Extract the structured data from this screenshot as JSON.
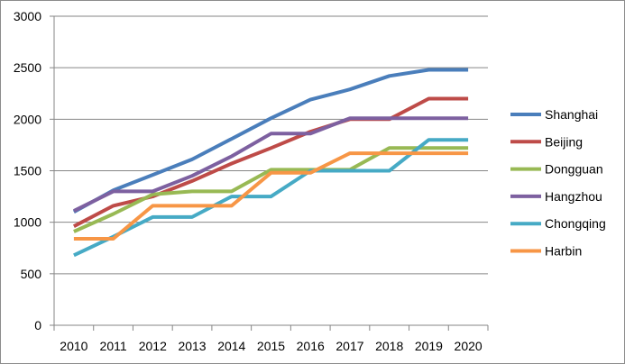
{
  "chart_data": {
    "type": "line",
    "title": "",
    "xlabel": "",
    "ylabel": "",
    "ylim": [
      0,
      3000
    ],
    "yticks": [
      0,
      500,
      1000,
      1500,
      2000,
      2500,
      3000
    ],
    "grid": true,
    "legend_position": "right",
    "categories": [
      "2010",
      "2011",
      "2012",
      "2013",
      "2014",
      "2015",
      "2016",
      "2017",
      "2018",
      "2019",
      "2020"
    ],
    "series": [
      {
        "name": "Shanghai",
        "color": "#4a7ebb",
        "values": [
          1100,
          1310,
          1460,
          1610,
          1810,
          2010,
          2190,
          2290,
          2420,
          2480,
          2480
        ]
      },
      {
        "name": "Beijing",
        "color": "#be4b48",
        "values": [
          960,
          1160,
          1250,
          1400,
          1570,
          1720,
          1880,
          2000,
          2000,
          2200,
          2200
        ]
      },
      {
        "name": "Dongguan",
        "color": "#98b954",
        "values": [
          910,
          1080,
          1270,
          1300,
          1300,
          1510,
          1510,
          1510,
          1720,
          1720,
          1720
        ]
      },
      {
        "name": "Hangzhou",
        "color": "#7d60a0",
        "values": [
          1110,
          1300,
          1300,
          1450,
          1640,
          1860,
          1860,
          2010,
          2010,
          2010,
          2010
        ]
      },
      {
        "name": "Chongqing",
        "color": "#46aac5",
        "values": [
          680,
          860,
          1050,
          1050,
          1250,
          1250,
          1500,
          1500,
          1500,
          1800,
          1800
        ]
      },
      {
        "name": "Harbin",
        "color": "#f79646",
        "values": [
          840,
          840,
          1160,
          1160,
          1160,
          1480,
          1480,
          1670,
          1670,
          1670,
          1670
        ]
      }
    ]
  }
}
